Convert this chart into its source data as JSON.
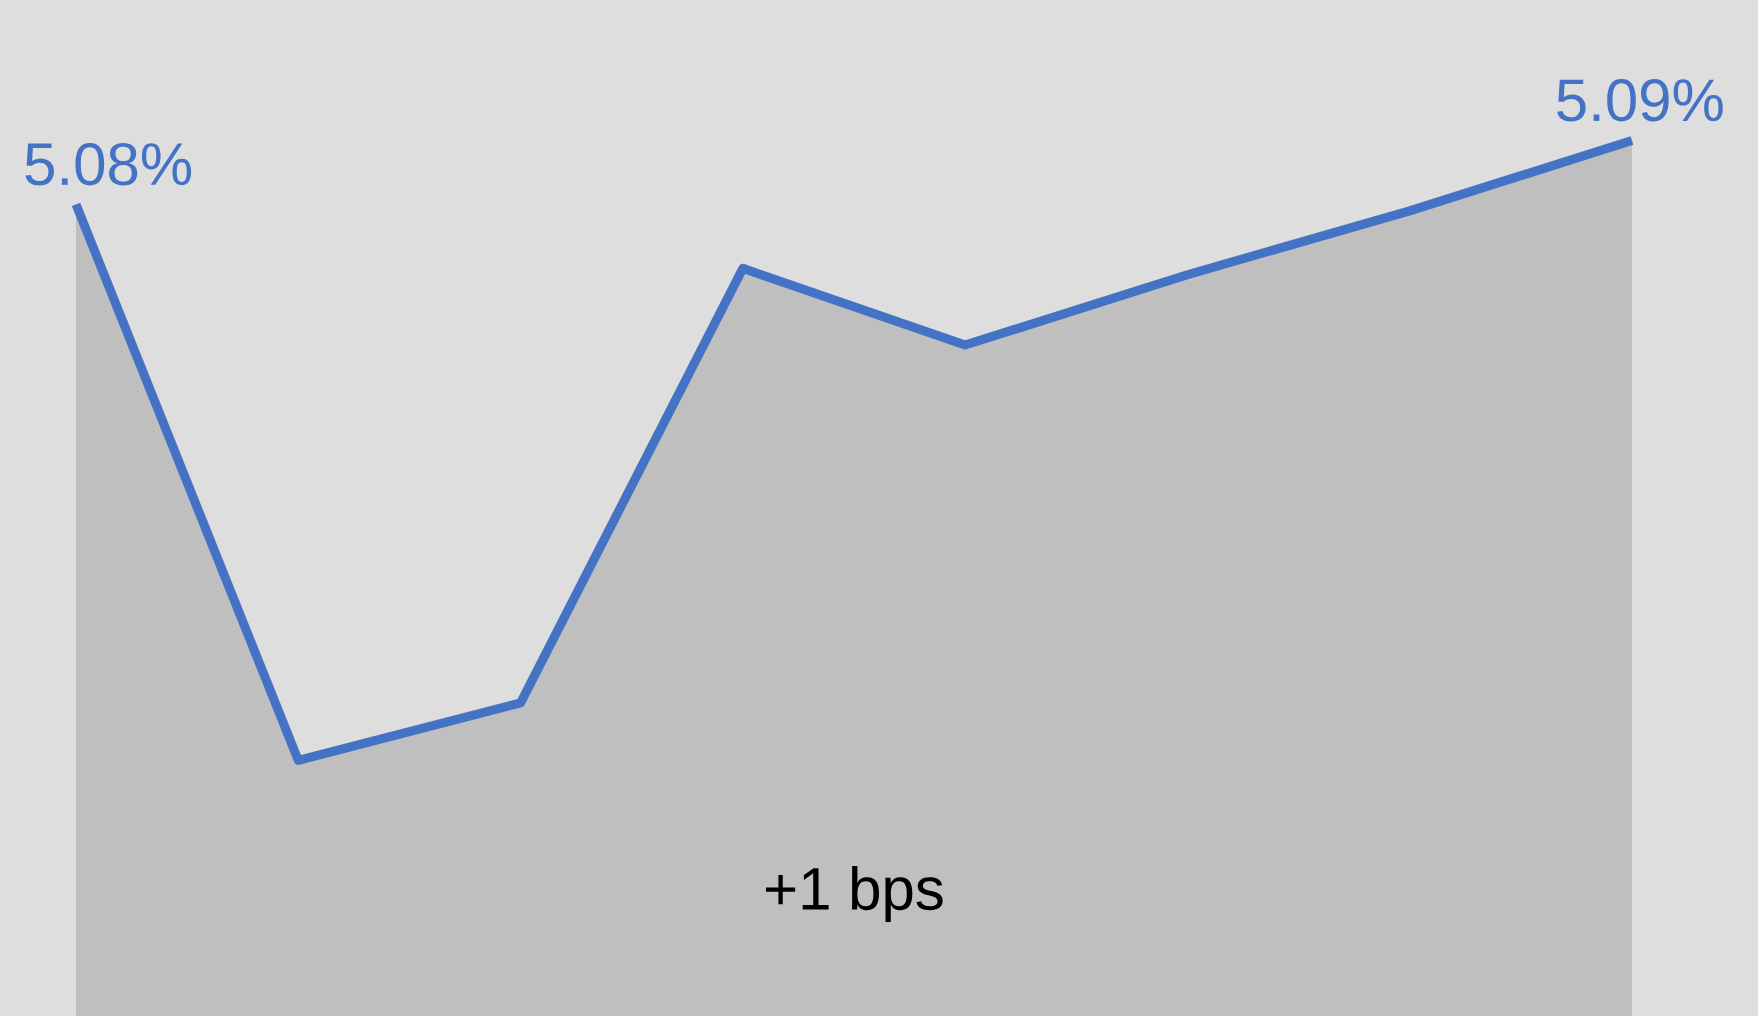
{
  "chart_data": {
    "type": "area",
    "categories": [
      null,
      null,
      null,
      null,
      null,
      null,
      null,
      null
    ],
    "series": [
      {
        "color": "#4472c4",
        "values": [
          5.08,
          4.993,
          5.002,
          5.07,
          5.058,
          5.069,
          5.079,
          5.09
        ],
        "value_labels": [
          "5.08%",
          null,
          null,
          null,
          null,
          null,
          null,
          "5.09%"
        ]
      }
    ],
    "ylim": [
      4.953,
      5.112
    ],
    "annotations": [
      "+1 bps"
    ]
  }
}
